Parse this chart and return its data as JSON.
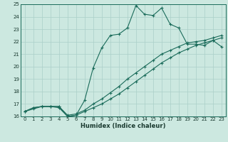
{
  "xlabel": "Humidex (Indice chaleur)",
  "ylabel": "",
  "bg_color": "#cce8e0",
  "line_color": "#1a6b5a",
  "grid_color": "#aacfc8",
  "xlim": [
    -0.5,
    23.5
  ],
  "ylim": [
    16,
    25
  ],
  "xticks": [
    0,
    1,
    2,
    3,
    4,
    5,
    6,
    7,
    8,
    9,
    10,
    11,
    12,
    13,
    14,
    15,
    16,
    17,
    18,
    19,
    20,
    21,
    22,
    23
  ],
  "yticks": [
    16,
    17,
    18,
    19,
    20,
    21,
    22,
    23,
    24,
    25
  ],
  "lines": [
    {
      "x": [
        0,
        1,
        2,
        3,
        4,
        5,
        6,
        7,
        8,
        9,
        10,
        11,
        12,
        13,
        14,
        15,
        16,
        17,
        18,
        19,
        20,
        21,
        22,
        23
      ],
      "y": [
        16.4,
        16.7,
        16.8,
        16.8,
        16.8,
        16.0,
        16.1,
        17.3,
        19.9,
        21.5,
        22.5,
        22.6,
        23.1,
        24.9,
        24.2,
        24.1,
        24.7,
        23.4,
        23.1,
        21.8,
        21.8,
        21.7,
        22.1,
        21.6
      ]
    },
    {
      "x": [
        0,
        1,
        2,
        3,
        4,
        5,
        6,
        7,
        8,
        9,
        10,
        11,
        12,
        13,
        14,
        15,
        16,
        17,
        18,
        19,
        20,
        21,
        22,
        23
      ],
      "y": [
        16.4,
        16.7,
        16.8,
        16.8,
        16.8,
        16.1,
        16.2,
        16.5,
        17.0,
        17.4,
        17.9,
        18.4,
        19.0,
        19.5,
        20.0,
        20.5,
        21.0,
        21.3,
        21.6,
        21.9,
        22.0,
        22.1,
        22.3,
        22.5
      ]
    },
    {
      "x": [
        0,
        1,
        2,
        3,
        4,
        5,
        6,
        7,
        8,
        9,
        10,
        11,
        12,
        13,
        14,
        15,
        16,
        17,
        18,
        19,
        20,
        21,
        22,
        23
      ],
      "y": [
        16.4,
        16.6,
        16.8,
        16.8,
        16.7,
        16.0,
        16.1,
        16.4,
        16.7,
        17.0,
        17.4,
        17.8,
        18.3,
        18.8,
        19.3,
        19.8,
        20.3,
        20.7,
        21.1,
        21.4,
        21.7,
        21.9,
        22.1,
        22.3
      ]
    }
  ]
}
